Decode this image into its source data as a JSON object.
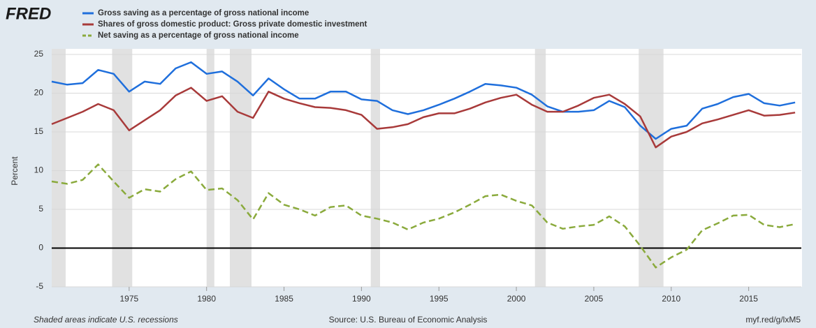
{
  "chart_data": {
    "type": "line",
    "logo": "FRED",
    "ylabel": "Percent",
    "footer_left": "Shaded areas indicate U.S. recessions",
    "footer_center": "Source: U.S. Bureau of Economic Analysis",
    "footer_right": "myf.red/g/lxM5",
    "x": [
      1970,
      1971,
      1972,
      1973,
      1974,
      1975,
      1976,
      1977,
      1978,
      1979,
      1980,
      1981,
      1982,
      1983,
      1984,
      1985,
      1986,
      1987,
      1988,
      1989,
      1990,
      1991,
      1992,
      1993,
      1994,
      1995,
      1996,
      1997,
      1998,
      1999,
      2000,
      2001,
      2002,
      2003,
      2004,
      2005,
      2006,
      2007,
      2008,
      2009,
      2010,
      2011,
      2012,
      2013,
      2014,
      2015,
      2016,
      2017,
      2018
    ],
    "series": [
      {
        "name": "Gross saving as a percentage of gross national income",
        "color": "#1f6fdc",
        "dash": false,
        "values": [
          21.5,
          21.1,
          21.3,
          23.0,
          22.5,
          20.2,
          21.5,
          21.2,
          23.2,
          24.0,
          22.5,
          22.8,
          21.5,
          19.7,
          21.9,
          20.5,
          19.3,
          19.3,
          20.2,
          20.2,
          19.2,
          19.0,
          17.8,
          17.3,
          17.8,
          18.5,
          19.3,
          20.2,
          21.2,
          21.0,
          20.7,
          19.8,
          18.3,
          17.6,
          17.6,
          17.8,
          19.0,
          18.2,
          15.8,
          14.1,
          15.4,
          15.8,
          18.0,
          18.6,
          19.5,
          19.9,
          18.7,
          18.4,
          18.8
        ]
      },
      {
        "name": "Shares of gross domestic product: Gross private domestic investment",
        "color": "#a83a3a",
        "dash": false,
        "values": [
          16.0,
          16.8,
          17.6,
          18.6,
          17.8,
          15.2,
          16.5,
          17.8,
          19.7,
          20.7,
          19.0,
          19.6,
          17.6,
          16.8,
          20.2,
          19.3,
          18.7,
          18.2,
          18.1,
          17.8,
          17.2,
          15.4,
          15.6,
          16.0,
          16.9,
          17.4,
          17.4,
          18.0,
          18.8,
          19.4,
          19.8,
          18.5,
          17.6,
          17.6,
          18.4,
          19.4,
          19.8,
          18.6,
          17.0,
          13.0,
          14.4,
          15.0,
          16.1,
          16.6,
          17.2,
          17.8,
          17.1,
          17.2,
          17.5
        ]
      },
      {
        "name": "Net saving as a percentage of gross national income",
        "color": "#8aaa3c",
        "dash": true,
        "values": [
          8.6,
          8.3,
          8.8,
          10.8,
          8.6,
          6.5,
          7.6,
          7.3,
          8.9,
          9.9,
          7.5,
          7.7,
          6.2,
          3.7,
          7.1,
          5.6,
          5.0,
          4.2,
          5.3,
          5.5,
          4.2,
          3.8,
          3.3,
          2.4,
          3.3,
          3.8,
          4.6,
          5.6,
          6.7,
          6.9,
          6.1,
          5.5,
          3.3,
          2.5,
          2.8,
          3.0,
          4.1,
          2.8,
          0.3,
          -2.5,
          -1.2,
          -0.2,
          2.3,
          3.2,
          4.2,
          4.3,
          3.0,
          2.7,
          3.1
        ]
      }
    ],
    "recessions": [
      [
        1970,
        1970.9
      ],
      [
        1973.9,
        1975.2
      ],
      [
        1980.0,
        1980.5
      ],
      [
        1981.5,
        1982.9
      ],
      [
        1990.6,
        1991.2
      ],
      [
        2001.2,
        2001.9
      ],
      [
        2007.9,
        2009.5
      ]
    ],
    "xlim": [
      1970,
      2018.4
    ],
    "xticks": [
      1975,
      1980,
      1985,
      1990,
      1995,
      2000,
      2005,
      2010,
      2015
    ],
    "ylim": [
      -5,
      25
    ],
    "yticks": [
      -5,
      0,
      5,
      10,
      15,
      20,
      25
    ],
    "grid": true
  }
}
